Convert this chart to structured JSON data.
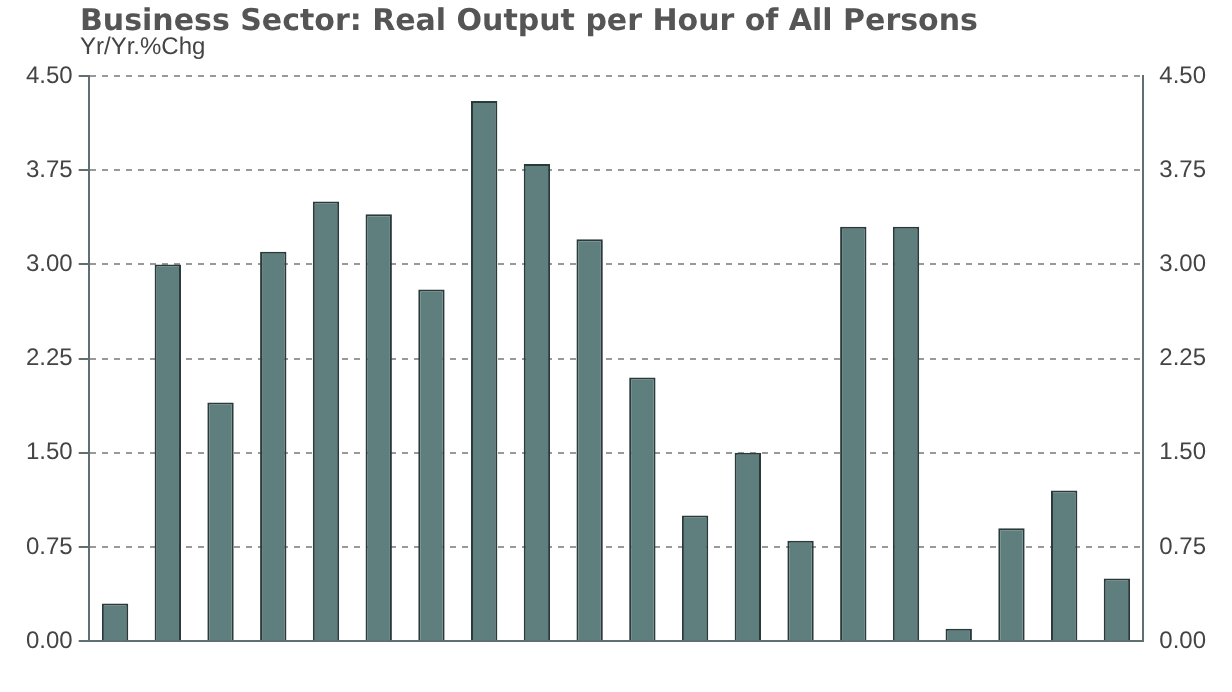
{
  "chart_data": {
    "type": "bar",
    "title": "Business Sector: Real Output per Hour of All Persons",
    "ylabel": "Yr/Yr.%Chg",
    "categories": [
      null,
      null,
      null,
      null,
      null,
      null,
      null,
      null,
      null,
      null,
      null,
      null,
      null,
      null,
      null,
      null,
      null,
      null,
      null,
      null
    ],
    "values": [
      0.3,
      3.0,
      1.9,
      3.1,
      3.5,
      3.4,
      2.8,
      4.3,
      3.8,
      3.2,
      2.1,
      1.0,
      1.5,
      0.8,
      3.3,
      3.3,
      0.1,
      0.9,
      1.2,
      0.5
    ],
    "color": "#5f7f7f",
    "ylim": [
      0,
      4.5
    ],
    "yticks": [
      {
        "value": 0,
        "label": "0.00"
      },
      {
        "value": 0.75,
        "label": "0.75"
      },
      {
        "value": 1.5,
        "label": "1.50"
      },
      {
        "value": 2.25,
        "label": "2.25"
      },
      {
        "value": 3,
        "label": "3.00"
      },
      {
        "value": 3.75,
        "label": "3.75"
      },
      {
        "value": 4.5,
        "label": "4.50"
      }
    ],
    "y2lim": [
      0,
      4.5
    ],
    "y2ticks": [
      {
        "value": 0,
        "label": "0.00"
      },
      {
        "value": 0.75,
        "label": "0.75"
      },
      {
        "value": 1.5,
        "label": "1.50"
      },
      {
        "value": 2.25,
        "label": "2.25"
      },
      {
        "value": 3,
        "label": "3.00"
      },
      {
        "value": 3.75,
        "label": "3.75"
      },
      {
        "value": 4.5,
        "label": "4.50"
      }
    ],
    "grid": "y",
    "legend": false
  }
}
